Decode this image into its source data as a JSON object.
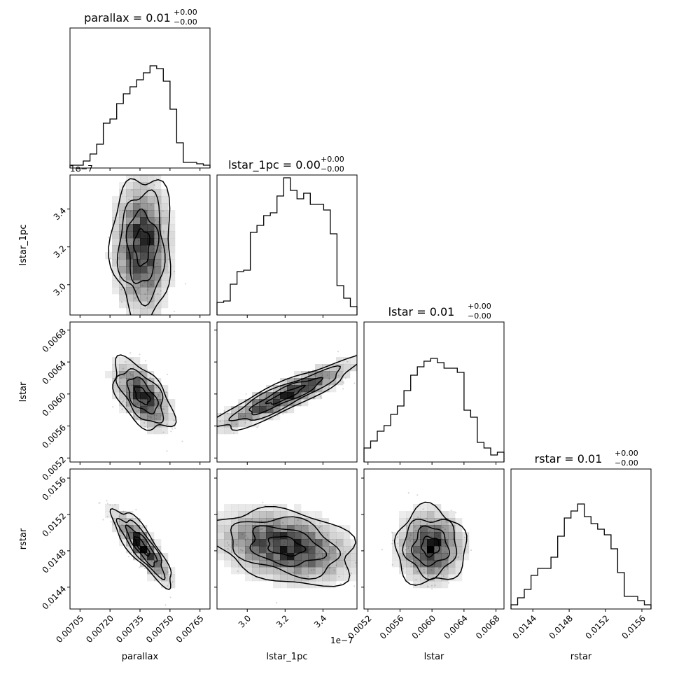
{
  "chart_data": {
    "type": "corner",
    "variables": [
      "parallax",
      "lstar_1pc",
      "lstar",
      "rstar"
    ],
    "titles": [
      {
        "param": "parallax",
        "median": "0.01",
        "plus": "+0.00",
        "minus": "−0.00"
      },
      {
        "param": "lstar_1pc",
        "median": "0.00",
        "plus": "+0.00",
        "minus": "−0.00"
      },
      {
        "param": "lstar",
        "median": "0.01",
        "plus": "+0.00",
        "minus": "−0.00"
      },
      {
        "param": "rstar",
        "median": "0.01",
        "plus": "+0.00",
        "minus": "−0.00"
      }
    ],
    "axis_labels": [
      "parallax",
      "lstar_1pc",
      "lstar",
      "rstar"
    ],
    "ranges": [
      [
        0.007,
        0.0077
      ],
      [
        2.84e-07,
        3.58e-07
      ],
      [
        0.00515,
        0.0069
      ],
      [
        0.01416,
        0.0157
      ]
    ],
    "ticks": [
      [
        {
          "v": 0.00705,
          "label": "0.00705"
        },
        {
          "v": 0.0072,
          "label": "0.00720"
        },
        {
          "v": 0.00735,
          "label": "0.00735"
        },
        {
          "v": 0.0075,
          "label": "0.00750"
        },
        {
          "v": 0.00765,
          "label": "0.00765"
        }
      ],
      [
        {
          "v": 3e-07,
          "label": "3.0"
        },
        {
          "v": 3.2e-07,
          "label": "3.2"
        },
        {
          "v": 3.4e-07,
          "label": "3.4"
        }
      ],
      [
        {
          "v": 0.0052,
          "label": "0.0052"
        },
        {
          "v": 0.0056,
          "label": "0.0056"
        },
        {
          "v": 0.006,
          "label": "0.0060"
        },
        {
          "v": 0.0064,
          "label": "0.0064"
        },
        {
          "v": 0.0068,
          "label": "0.0068"
        }
      ],
      [
        {
          "v": 0.0144,
          "label": "0.0144"
        },
        {
          "v": 0.0148,
          "label": "0.0148"
        },
        {
          "v": 0.0152,
          "label": "0.0152"
        },
        {
          "v": 0.0156,
          "label": "0.0156"
        }
      ]
    ],
    "offset_labels": [
      "1e−7",
      "1e−7"
    ],
    "histograms": [
      [
        0.02,
        0.02,
        0.05,
        0.1,
        0.17,
        0.32,
        0.35,
        0.46,
        0.53,
        0.58,
        0.63,
        0.68,
        0.73,
        0.71,
        0.62,
        0.42,
        0.18,
        0.04,
        0.04,
        0.03,
        0.02
      ],
      [
        0.09,
        0.1,
        0.22,
        0.31,
        0.32,
        0.59,
        0.64,
        0.71,
        0.73,
        0.85,
        0.98,
        0.89,
        0.83,
        0.87,
        0.79,
        0.79,
        0.75,
        0.58,
        0.21,
        0.12,
        0.06
      ],
      [
        0.1,
        0.15,
        0.22,
        0.26,
        0.34,
        0.4,
        0.51,
        0.62,
        0.68,
        0.72,
        0.74,
        0.71,
        0.67,
        0.67,
        0.64,
        0.37,
        0.32,
        0.14,
        0.1,
        0.05,
        0.07
      ],
      [
        0.03,
        0.08,
        0.14,
        0.24,
        0.29,
        0.29,
        0.37,
        0.52,
        0.65,
        0.7,
        0.75,
        0.66,
        0.61,
        0.57,
        0.53,
        0.43,
        0.26,
        0.09,
        0.09,
        0.06,
        0.03
      ]
    ],
    "pairs": [
      {
        "x": 0,
        "y": 1,
        "center": [
          0.00736,
          3.2e-07
        ],
        "sigma": [
          7.5e-05,
          1.9e-08
        ],
        "rho": 0.0
      },
      {
        "x": 0,
        "y": 2,
        "center": [
          0.00736,
          0.00598
        ],
        "sigma": [
          7.5e-05,
          0.00022
        ],
        "rho": -0.55
      },
      {
        "x": 1,
        "y": 2,
        "center": [
          3.2e-07,
          0.00598
        ],
        "sigma": [
          1.9e-08,
          0.00022
        ],
        "rho": 0.9
      },
      {
        "x": 0,
        "y": 3,
        "center": [
          0.00736,
          0.01485
        ],
        "sigma": [
          7.5e-05,
          0.00021
        ],
        "rho": -0.85
      },
      {
        "x": 1,
        "y": 3,
        "center": [
          3.2e-07,
          0.01485
        ],
        "sigma": [
          1.9e-08,
          0.00021
        ],
        "rho": -0.3
      },
      {
        "x": 2,
        "y": 3,
        "center": [
          0.00598,
          0.01485
        ],
        "sigma": [
          0.00022,
          0.00021
        ],
        "rho": 0.0
      }
    ],
    "contour_levels_sigma": [
      0.5,
      1.0,
      1.5,
      2.0
    ],
    "colors": {
      "line": "#000000",
      "density": "#000000",
      "points": "#d8d8d8",
      "background": "#ffffff"
    }
  }
}
